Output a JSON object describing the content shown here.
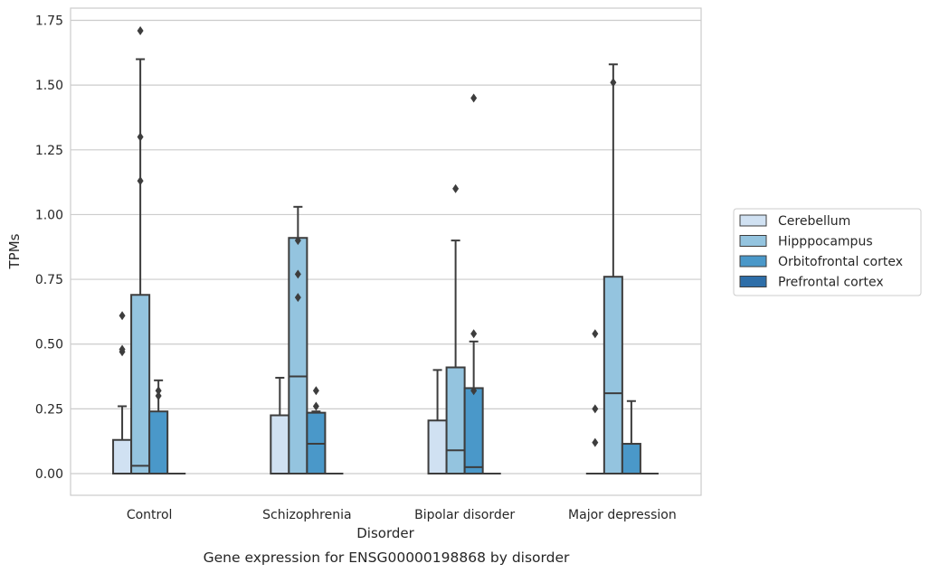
{
  "chart_data": {
    "type": "box",
    "caption": "Gene expression for ENSG00000198868 by disorder",
    "xlabel": "Disorder",
    "ylabel": "TPMs",
    "ylim": [
      -0.085,
      1.8
    ],
    "yticks": [
      "0.00",
      "0.25",
      "0.50",
      "0.75",
      "1.00",
      "1.25",
      "1.50",
      "1.75"
    ],
    "ytick_values": [
      0,
      0.25,
      0.5,
      0.75,
      1.0,
      1.25,
      1.5,
      1.75
    ],
    "grid": true,
    "legend_position": "right",
    "categories": [
      "Control",
      "Schizophrenia",
      "Bipolar disorder",
      "Major depression"
    ],
    "series": [
      {
        "name": "Cerebellum",
        "color": "#d0e1f2",
        "boxes": [
          {
            "q1": 0,
            "median": 0,
            "q3": 0.13,
            "whisker_low": 0,
            "whisker_high": 0.26,
            "outliers": [
              0.47,
              0.48,
              0.61
            ]
          },
          {
            "q1": 0,
            "median": 0,
            "q3": 0.225,
            "whisker_low": 0,
            "whisker_high": 0.37,
            "outliers": []
          },
          {
            "q1": 0,
            "median": 0,
            "q3": 0.205,
            "whisker_low": 0,
            "whisker_high": 0.4,
            "outliers": []
          },
          {
            "q1": 0,
            "median": 0,
            "q3": 0,
            "whisker_low": 0,
            "whisker_high": 0,
            "outliers": [
              0.12,
              0.25,
              0.54
            ]
          }
        ]
      },
      {
        "name": "Hipppocampus",
        "color": "#94c4df",
        "boxes": [
          {
            "q1": 0,
            "median": 0.03,
            "q3": 0.69,
            "whisker_low": 0,
            "whisker_high": 1.6,
            "outliers": [
              1.13,
              1.3,
              1.71
            ]
          },
          {
            "q1": 0,
            "median": 0.375,
            "q3": 0.91,
            "whisker_low": 0,
            "whisker_high": 1.03,
            "outliers": [
              0.68,
              0.77,
              0.9
            ]
          },
          {
            "q1": 0,
            "median": 0.09,
            "q3": 0.41,
            "whisker_low": 0,
            "whisker_high": 0.9,
            "outliers": [
              1.1
            ]
          },
          {
            "q1": 0,
            "median": 0.31,
            "q3": 0.76,
            "whisker_low": 0,
            "whisker_high": 1.58,
            "outliers": [
              1.51
            ]
          }
        ]
      },
      {
        "name": "Orbitofrontal cortex",
        "color": "#4a98c9",
        "boxes": [
          {
            "q1": 0,
            "median": 0,
            "q3": 0.24,
            "whisker_low": 0,
            "whisker_high": 0.36,
            "outliers": [
              0.3,
              0.32
            ]
          },
          {
            "q1": 0,
            "median": 0.115,
            "q3": 0.235,
            "whisker_low": 0,
            "whisker_high": 0.24,
            "outliers": [
              0.26,
              0.32
            ]
          },
          {
            "q1": 0,
            "median": 0.025,
            "q3": 0.33,
            "whisker_low": 0,
            "whisker_high": 0.51,
            "outliers": [
              0.32,
              0.54,
              1.45
            ]
          },
          {
            "q1": 0,
            "median": 0,
            "q3": 0.115,
            "whisker_low": 0,
            "whisker_high": 0.28,
            "outliers": []
          }
        ]
      },
      {
        "name": "Prefrontal cortex",
        "color": "#2e6ea8",
        "boxes": [
          {
            "q1": 0,
            "median": 0,
            "q3": 0,
            "whisker_low": 0,
            "whisker_high": 0,
            "outliers": []
          },
          {
            "q1": 0,
            "median": 0,
            "q3": 0,
            "whisker_low": 0,
            "whisker_high": 0,
            "outliers": []
          },
          {
            "q1": 0,
            "median": 0,
            "q3": 0,
            "whisker_low": 0,
            "whisker_high": 0,
            "outliers": []
          },
          {
            "q1": 0,
            "median": 0,
            "q3": 0,
            "whisker_low": 0,
            "whisker_high": 0,
            "outliers": []
          }
        ]
      }
    ]
  },
  "colors": {
    "line": "#3d3d3d",
    "grid": "#cccccc",
    "text": "#262626"
  }
}
